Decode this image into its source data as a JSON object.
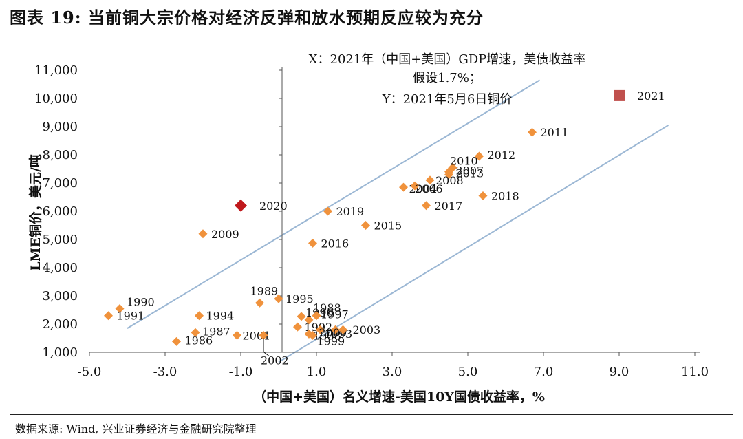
{
  "figure": {
    "title": "图表 19: 当前铜大宗价格对经济反弹和放水预期反应较为充分",
    "source": "数据来源: Wind, 兴业证券经济与金融研究院整理"
  },
  "chart_data": {
    "type": "scatter",
    "xlabel": "（中国+美国）名义增速-美国10Y国债收益率，%",
    "ylabel": "LME铜价，美元/吨",
    "xlim": [
      -5.0,
      11.0
    ],
    "ylim": [
      1000,
      11000
    ],
    "x_ticks": [
      -5.0,
      -3.0,
      -1.0,
      1.0,
      3.0,
      5.0,
      7.0,
      9.0,
      11.0
    ],
    "x_tick_labels": [
      "-5.0",
      "-3.0",
      "-1.0",
      "1.0",
      "3.0",
      "5.0",
      "7.0",
      "9.0",
      "11.0"
    ],
    "y_ticks": [
      1000,
      2000,
      3000,
      4000,
      5000,
      6000,
      7000,
      8000,
      9000,
      10000,
      11000
    ],
    "y_tick_labels": [
      "1,000",
      "2,000",
      "3,000",
      "4,000",
      "5,000",
      "6,000",
      "7,000",
      "8,000",
      "9,000",
      "10,000",
      "11,000"
    ],
    "grid": false,
    "annotation": [
      "X：2021年（中国+美国）GDP增速，美债收益率",
      "假设1.7%；",
      "Y：2021年5月6日铜价"
    ],
    "colors": {
      "points": "#f0923c",
      "highlight_2020": "#c0191c",
      "highlight_2021": "#c0504d",
      "bands": "#9bb7d4"
    },
    "points": [
      {
        "label": "1986",
        "x": -2.7,
        "y": 1380
      },
      {
        "label": "1987",
        "x": -2.2,
        "y": 1700
      },
      {
        "label": "1988",
        "x": 0.8,
        "y": 2150
      },
      {
        "label": "1989",
        "x": -0.5,
        "y": 2750
      },
      {
        "label": "1990",
        "x": -4.2,
        "y": 2550
      },
      {
        "label": "1991",
        "x": -4.5,
        "y": 2300
      },
      {
        "label": "1992",
        "x": 0.5,
        "y": 1900
      },
      {
        "label": "1993",
        "x": 1.1,
        "y": 1800
      },
      {
        "label": "1994",
        "x": -2.1,
        "y": 2300
      },
      {
        "label": "1995",
        "x": 0.0,
        "y": 2900
      },
      {
        "label": "1996",
        "x": 0.6,
        "y": 2270
      },
      {
        "label": "1997",
        "x": 1.0,
        "y": 2300
      },
      {
        "label": "1998",
        "x": 0.8,
        "y": 1650
      },
      {
        "label": "1999",
        "x": 0.9,
        "y": 1600
      },
      {
        "label": "2000",
        "x": 1.5,
        "y": 1800
      },
      {
        "label": "2001",
        "x": -1.1,
        "y": 1600
      },
      {
        "label": "2002",
        "x": -0.4,
        "y": 1600
      },
      {
        "label": "2003",
        "x": 1.7,
        "y": 1800
      },
      {
        "label": "2004",
        "x": 3.3,
        "y": 6850
      },
      {
        "label": "2006",
        "x": 3.6,
        "y": 6900
      },
      {
        "label": "2007",
        "x": 4.5,
        "y": 7300
      },
      {
        "label": "2008",
        "x": 4.0,
        "y": 7100
      },
      {
        "label": "2009",
        "x": -2.0,
        "y": 5200
      },
      {
        "label": "2010",
        "x": 4.6,
        "y": 7550
      },
      {
        "label": "2011",
        "x": 6.7,
        "y": 8800
      },
      {
        "label": "2012",
        "x": 5.3,
        "y": 7950
      },
      {
        "label": "2013",
        "x": 4.5,
        "y": 7400
      },
      {
        "label": "2015",
        "x": 2.3,
        "y": 5500
      },
      {
        "label": "2016",
        "x": 0.9,
        "y": 4870
      },
      {
        "label": "2017",
        "x": 3.9,
        "y": 6200
      },
      {
        "label": "2018",
        "x": 5.4,
        "y": 6550
      },
      {
        "label": "2019",
        "x": 1.3,
        "y": 6000
      }
    ],
    "highlights": [
      {
        "label": "2020",
        "x": -1.0,
        "y": 6200
      },
      {
        "label": "2021",
        "x": 9.0,
        "y": 10100
      }
    ],
    "band_lines": [
      {
        "x1": -4.0,
        "y1": 1850,
        "x2": 6.9,
        "y2": 10650
      },
      {
        "x1": 0.0,
        "y1": 650,
        "x2": 10.3,
        "y2": 9050
      }
    ]
  }
}
